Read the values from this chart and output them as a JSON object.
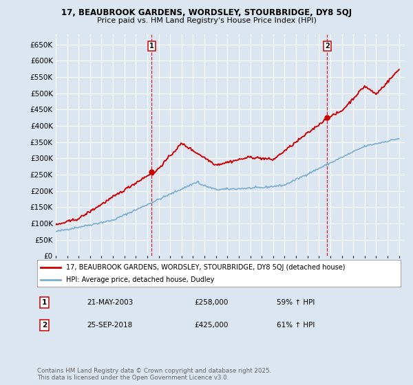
{
  "title_line1": "17, BEAUBROOK GARDENS, WORDSLEY, STOURBRIDGE, DY8 5QJ",
  "title_line2": "Price paid vs. HM Land Registry's House Price Index (HPI)",
  "ylim": [
    0,
    680000
  ],
  "yticks": [
    0,
    50000,
    100000,
    150000,
    200000,
    250000,
    300000,
    350000,
    400000,
    450000,
    500000,
    550000,
    600000,
    650000
  ],
  "background_color": "#dce6f1",
  "plot_bg_color": "#dce6f1",
  "grid_color": "#ffffff",
  "red_color": "#cc0000",
  "blue_color": "#7aadcf",
  "sale1": {
    "date_num": 2003.39,
    "price": 258000,
    "label": "1"
  },
  "sale2": {
    "date_num": 2018.73,
    "price": 425000,
    "label": "2"
  },
  "legend_red": "17, BEAUBROOK GARDENS, WORDSLEY, STOURBRIDGE, DY8 5QJ (detached house)",
  "legend_blue": "HPI: Average price, detached house, Dudley",
  "annotation1_date": "21-MAY-2003",
  "annotation1_price": "£258,000",
  "annotation1_hpi": "59% ↑ HPI",
  "annotation2_date": "25-SEP-2018",
  "annotation2_price": "£425,000",
  "annotation2_hpi": "61% ↑ HPI",
  "footer": "Contains HM Land Registry data © Crown copyright and database right 2025.\nThis data is licensed under the Open Government Licence v3.0."
}
